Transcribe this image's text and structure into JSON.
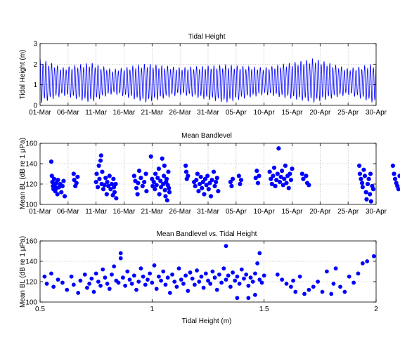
{
  "chart_data": [
    {
      "type": "line",
      "title": "Tidal Height",
      "ylabel": "Tidal Height (m)",
      "xlabel": "",
      "x_ticks": [
        "01-Mar",
        "06-Mar",
        "11-Mar",
        "16-Mar",
        "21-Mar",
        "26-Mar",
        "31-Mar",
        "05-Apr",
        "10-Apr",
        "15-Apr",
        "20-Apr",
        "25-Apr",
        "30-Apr"
      ],
      "x_start_label": "01-Mar",
      "x_end_label": "30-Apr",
      "ylim": [
        0,
        3
      ],
      "y_ticks": [
        0,
        1,
        2,
        3
      ],
      "grid": true,
      "color": "#0000ff",
      "description_of_series": "semi-diurnal tide, two cycles per day",
      "tide": {
        "period_days": 0.5175,
        "envelope": [
          {
            "day": 0,
            "min": 0.05,
            "max": 2.3
          },
          {
            "day": 4,
            "min": 0.45,
            "max": 1.85
          },
          {
            "day": 9,
            "min": 0.1,
            "max": 2.1
          },
          {
            "day": 13,
            "min": 0.55,
            "max": 1.75
          },
          {
            "day": 19,
            "min": 0.1,
            "max": 2.05
          },
          {
            "day": 25,
            "min": 0.5,
            "max": 1.85
          },
          {
            "day": 33,
            "min": 0.1,
            "max": 2.0
          },
          {
            "day": 40,
            "min": 0.5,
            "max": 1.85
          },
          {
            "day": 49,
            "min": 0.1,
            "max": 2.3
          },
          {
            "day": 55,
            "min": 0.5,
            "max": 1.8
          },
          {
            "day": 60,
            "min": 0.05,
            "max": 2.05
          }
        ]
      }
    },
    {
      "type": "scatter",
      "title": "Mean Bandlevel",
      "ylabel": "Mean BL (dB re 1 μPa)",
      "xlabel": "",
      "x_ticks": [
        "01-Mar",
        "06-Mar",
        "11-Mar",
        "16-Mar",
        "21-Mar",
        "26-Mar",
        "31-Mar",
        "05-Apr",
        "10-Apr",
        "15-Apr",
        "20-Apr",
        "25-Apr",
        "30-Apr"
      ],
      "ylim": [
        100,
        160
      ],
      "y_ticks": [
        100,
        120,
        140,
        160
      ],
      "grid": true,
      "color": "#0000ff",
      "points": [
        [
          2.0,
          142
        ],
        [
          2.1,
          128
        ],
        [
          2.2,
          122
        ],
        [
          2.3,
          118
        ],
        [
          2.4,
          115
        ],
        [
          2.5,
          125
        ],
        [
          2.6,
          119
        ],
        [
          2.7,
          113
        ],
        [
          2.9,
          121
        ],
        [
          3.0,
          116
        ],
        [
          3.1,
          110
        ],
        [
          3.2,
          124
        ],
        [
          3.4,
          117
        ],
        [
          3.6,
          120
        ],
        [
          3.8,
          112
        ],
        [
          4.0,
          118
        ],
        [
          4.2,
          123
        ],
        [
          4.4,
          108
        ],
        [
          6.0,
          130
        ],
        [
          6.1,
          124
        ],
        [
          6.3,
          118
        ],
        [
          6.5,
          121
        ],
        [
          6.7,
          127
        ],
        [
          10.0,
          122
        ],
        [
          10.1,
          130
        ],
        [
          10.3,
          117
        ],
        [
          10.5,
          138
        ],
        [
          10.6,
          125
        ],
        [
          10.8,
          143
        ],
        [
          10.9,
          148
        ],
        [
          11.0,
          120
        ],
        [
          11.1,
          132
        ],
        [
          11.3,
          115
        ],
        [
          11.5,
          119
        ],
        [
          11.7,
          126
        ],
        [
          11.9,
          110
        ],
        [
          12.0,
          122
        ],
        [
          12.2,
          118
        ],
        [
          12.4,
          128
        ],
        [
          12.6,
          115
        ],
        [
          12.8,
          120
        ],
        [
          13.0,
          109
        ],
        [
          13.1,
          125
        ],
        [
          13.2,
          117
        ],
        [
          13.3,
          112
        ],
        [
          13.5,
          120
        ],
        [
          13.6,
          106
        ],
        [
          16.8,
          128
        ],
        [
          17.0,
          123
        ],
        [
          17.2,
          116
        ],
        [
          17.4,
          110
        ],
        [
          17.5,
          121
        ],
        [
          17.7,
          133
        ],
        [
          18.0,
          126
        ],
        [
          18.3,
          118
        ],
        [
          18.6,
          122
        ],
        [
          18.9,
          130
        ],
        [
          19.0,
          113
        ],
        [
          19.8,
          147
        ],
        [
          20.0,
          125
        ],
        [
          20.1,
          118
        ],
        [
          20.3,
          122
        ],
        [
          20.5,
          115
        ],
        [
          20.6,
          130
        ],
        [
          20.8,
          119
        ],
        [
          21.0,
          126
        ],
        [
          21.2,
          135
        ],
        [
          21.3,
          110
        ],
        [
          21.5,
          123
        ],
        [
          21.6,
          117
        ],
        [
          21.8,
          145
        ],
        [
          22.0,
          120
        ],
        [
          22.1,
          128
        ],
        [
          22.2,
          138
        ],
        [
          22.3,
          114
        ],
        [
          22.4,
          108
        ],
        [
          22.5,
          122
        ],
        [
          22.6,
          125
        ],
        [
          22.7,
          104
        ],
        [
          22.8,
          119
        ],
        [
          22.9,
          132
        ],
        [
          23.0,
          116
        ],
        [
          23.1,
          112
        ],
        [
          26.0,
          138
        ],
        [
          26.1,
          132
        ],
        [
          26.2,
          125
        ],
        [
          26.4,
          128
        ],
        [
          27.5,
          122
        ],
        [
          27.7,
          118
        ],
        [
          27.9,
          124
        ],
        [
          28.1,
          130
        ],
        [
          28.3,
          113
        ],
        [
          28.5,
          120
        ],
        [
          28.7,
          127
        ],
        [
          28.9,
          116
        ],
        [
          29.1,
          122
        ],
        [
          29.3,
          110
        ],
        [
          29.5,
          125
        ],
        [
          29.7,
          119
        ],
        [
          29.9,
          128
        ],
        [
          30.1,
          115
        ],
        [
          30.3,
          121
        ],
        [
          30.5,
          108
        ],
        [
          30.7,
          124
        ],
        [
          31.0,
          132
        ],
        [
          31.2,
          118
        ],
        [
          31.4,
          122
        ],
        [
          31.6,
          126
        ],
        [
          31.8,
          113
        ],
        [
          34.0,
          122
        ],
        [
          34.2,
          118
        ],
        [
          34.4,
          125
        ],
        [
          35.5,
          128
        ],
        [
          35.7,
          120
        ],
        [
          35.9,
          124
        ],
        [
          38.5,
          126
        ],
        [
          38.7,
          133
        ],
        [
          38.9,
          121
        ],
        [
          39.1,
          128
        ],
        [
          41.0,
          132
        ],
        [
          41.2,
          125
        ],
        [
          41.4,
          120
        ],
        [
          41.6,
          128
        ],
        [
          41.8,
          136
        ],
        [
          42.0,
          118
        ],
        [
          42.2,
          124
        ],
        [
          42.4,
          130
        ],
        [
          42.6,
          155
        ],
        [
          42.8,
          122
        ],
        [
          43.0,
          127
        ],
        [
          43.2,
          133
        ],
        [
          43.4,
          119
        ],
        [
          43.6,
          125
        ],
        [
          43.8,
          138
        ],
        [
          44.0,
          121
        ],
        [
          44.2,
          128
        ],
        [
          44.4,
          116
        ],
        [
          44.6,
          130
        ],
        [
          44.8,
          124
        ],
        [
          45.0,
          135
        ],
        [
          46.8,
          130
        ],
        [
          47.0,
          125
        ],
        [
          47.5,
          128
        ],
        [
          47.7,
          121
        ],
        [
          48.0,
          119
        ],
        [
          57.0,
          138
        ],
        [
          57.1,
          130
        ],
        [
          57.3,
          125
        ],
        [
          57.5,
          121
        ],
        [
          57.6,
          117
        ],
        [
          57.8,
          134
        ],
        [
          58.0,
          128
        ],
        [
          58.2,
          112
        ],
        [
          58.3,
          105
        ],
        [
          58.5,
          120
        ],
        [
          58.7,
          125
        ],
        [
          58.9,
          110
        ],
        [
          59.0,
          130
        ],
        [
          59.1,
          103
        ],
        [
          59.3,
          118
        ],
        [
          59.5,
          115
        ],
        [
          63.0,
          138
        ],
        [
          63.2,
          130
        ],
        [
          63.4,
          125
        ],
        [
          63.6,
          121
        ],
        [
          63.8,
          118
        ],
        [
          64.0,
          115
        ],
        [
          64.2,
          128
        ]
      ]
    },
    {
      "type": "scatter",
      "title": "Mean Bandlevel vs. Tidal Height",
      "xlabel": "Tidal Height (m)",
      "ylabel": "Mean BL (dB re 1 μPa)",
      "xlim": [
        0.5,
        2
      ],
      "ylim": [
        100,
        160
      ],
      "x_ticks": [
        "0.5",
        "1",
        "1.5",
        "2"
      ],
      "x_tick_values": [
        0.5,
        1,
        1.5,
        2
      ],
      "y_ticks": [
        100,
        120,
        140,
        160
      ],
      "grid": true,
      "color": "#0000ff",
      "points": [
        [
          0.52,
          125
        ],
        [
          0.53,
          118
        ],
        [
          0.55,
          128
        ],
        [
          0.56,
          115
        ],
        [
          0.58,
          122
        ],
        [
          0.6,
          119
        ],
        [
          0.62,
          112
        ],
        [
          0.64,
          125
        ],
        [
          0.65,
          117
        ],
        [
          0.67,
          109
        ],
        [
          0.68,
          121
        ],
        [
          0.7,
          127
        ],
        [
          0.71,
          114
        ],
        [
          0.72,
          118
        ],
        [
          0.73,
          123
        ],
        [
          0.74,
          110
        ],
        [
          0.75,
          128
        ],
        [
          0.76,
          120
        ],
        [
          0.77,
          116
        ],
        [
          0.78,
          132
        ],
        [
          0.79,
          124
        ],
        [
          0.8,
          118
        ],
        [
          0.81,
          113
        ],
        [
          0.82,
          127
        ],
        [
          0.83,
          135
        ],
        [
          0.84,
          121
        ],
        [
          0.85,
          119
        ],
        [
          0.86,
          143
        ],
        [
          0.86,
          148
        ],
        [
          0.87,
          124
        ],
        [
          0.88,
          116
        ],
        [
          0.89,
          130
        ],
        [
          0.9,
          122
        ],
        [
          0.91,
          118
        ],
        [
          0.92,
          126
        ],
        [
          0.93,
          112
        ],
        [
          0.94,
          120
        ],
        [
          0.95,
          133
        ],
        [
          0.96,
          125
        ],
        [
          0.97,
          117
        ],
        [
          0.98,
          122
        ],
        [
          0.99,
          128
        ],
        [
          1.0,
          119
        ],
        [
          1.01,
          136
        ],
        [
          1.02,
          113
        ],
        [
          1.03,
          125
        ],
        [
          1.04,
          121
        ],
        [
          1.05,
          130
        ],
        [
          1.06,
          117
        ],
        [
          1.07,
          124
        ],
        [
          1.08,
          109
        ],
        [
          1.09,
          127
        ],
        [
          1.1,
          120
        ],
        [
          1.11,
          115
        ],
        [
          1.12,
          133
        ],
        [
          1.13,
          122
        ],
        [
          1.14,
          118
        ],
        [
          1.15,
          126
        ],
        [
          1.16,
          111
        ],
        [
          1.17,
          129
        ],
        [
          1.18,
          123
        ],
        [
          1.19,
          117
        ],
        [
          1.2,
          131
        ],
        [
          1.21,
          120
        ],
        [
          1.22,
          125
        ],
        [
          1.23,
          114
        ],
        [
          1.24,
          128
        ],
        [
          1.25,
          121
        ],
        [
          1.26,
          118
        ],
        [
          1.27,
          130
        ],
        [
          1.28,
          124
        ],
        [
          1.29,
          112
        ],
        [
          1.3,
          127
        ],
        [
          1.31,
          119
        ],
        [
          1.32,
          133
        ],
        [
          1.33,
          122
        ],
        [
          1.34,
          126
        ],
        [
          1.35,
          115
        ],
        [
          1.36,
          129
        ],
        [
          1.37,
          121
        ],
        [
          1.38,
          125
        ],
        [
          1.39,
          118
        ],
        [
          1.4,
          132
        ],
        [
          1.41,
          123
        ],
        [
          1.42,
          127
        ],
        [
          1.43,
          116
        ],
        [
          1.44,
          124
        ],
        [
          1.45,
          120
        ],
        [
          1.46,
          128
        ],
        [
          1.47,
          138
        ],
        [
          1.48,
          122
        ],
        [
          1.48,
          148
        ],
        [
          1.49,
          119
        ],
        [
          1.5,
          126
        ],
        [
          1.33,
          155
        ],
        [
          1.38,
          104
        ],
        [
          1.43,
          104
        ],
        [
          1.46,
          107
        ],
        [
          1.56,
          127
        ],
        [
          1.58,
          122
        ],
        [
          1.6,
          118
        ],
        [
          1.62,
          115
        ],
        [
          1.63,
          121
        ],
        [
          1.64,
          110
        ],
        [
          1.66,
          125
        ],
        [
          1.68,
          108
        ],
        [
          1.7,
          112
        ],
        [
          1.72,
          115
        ],
        [
          1.74,
          120
        ],
        [
          1.76,
          110
        ],
        [
          1.78,
          130
        ],
        [
          1.8,
          108
        ],
        [
          1.81,
          118
        ],
        [
          1.82,
          133
        ],
        [
          1.84,
          115
        ],
        [
          1.86,
          110
        ],
        [
          1.88,
          125
        ],
        [
          1.9,
          119
        ],
        [
          1.92,
          128
        ],
        [
          1.94,
          138
        ],
        [
          1.96,
          140
        ],
        [
          1.99,
          145
        ]
      ]
    }
  ]
}
